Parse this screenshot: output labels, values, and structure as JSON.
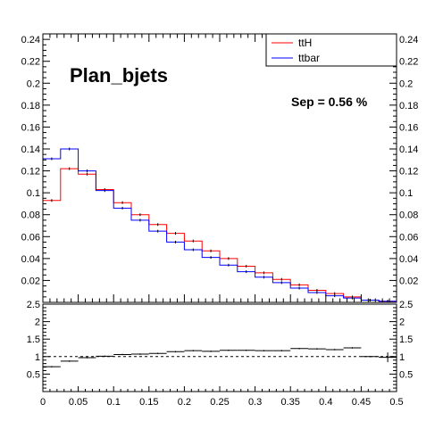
{
  "chart_data": [
    {
      "type": "histogram-step",
      "title": "Plan_bjets",
      "annotation": "Sep = 0.56 %",
      "legend": {
        "position": "top-right",
        "entries": [
          "ttH",
          "ttbar"
        ]
      },
      "bin_edges": [
        0,
        0.025,
        0.05,
        0.075,
        0.1,
        0.125,
        0.15,
        0.175,
        0.2,
        0.225,
        0.25,
        0.275,
        0.3,
        0.325,
        0.35,
        0.375,
        0.4,
        0.425,
        0.45,
        0.475,
        0.5
      ],
      "series": [
        {
          "name": "ttH",
          "color": "#ff0000",
          "values": [
            0.093,
            0.122,
            0.117,
            0.103,
            0.091,
            0.08,
            0.071,
            0.063,
            0.056,
            0.047,
            0.04,
            0.033,
            0.027,
            0.021,
            0.016,
            0.011,
            0.008,
            0.005,
            0.002,
            0.001
          ]
        },
        {
          "name": "ttbar",
          "color": "#0000ff",
          "values": [
            0.131,
            0.14,
            0.12,
            0.102,
            0.086,
            0.075,
            0.065,
            0.055,
            0.048,
            0.041,
            0.034,
            0.028,
            0.023,
            0.018,
            0.013,
            0.009,
            0.006,
            0.004,
            0.002,
            0.001
          ]
        }
      ],
      "xlim": [
        0,
        0.5
      ],
      "ylim": [
        0,
        0.245
      ],
      "y_ticks": [
        "0.02",
        "0.04",
        "0.06",
        "0.08",
        "0.1",
        "0.12",
        "0.14",
        "0.16",
        "0.18",
        "0.2",
        "0.22",
        "0.24"
      ]
    },
    {
      "type": "ratio",
      "x": [
        0.0125,
        0.0375,
        0.0625,
        0.0875,
        0.1125,
        0.1375,
        0.1625,
        0.1875,
        0.2125,
        0.2375,
        0.2625,
        0.2875,
        0.3125,
        0.3375,
        0.3625,
        0.3875,
        0.4125,
        0.4375,
        0.4625,
        0.4875
      ],
      "values": [
        0.71,
        0.87,
        0.97,
        1.01,
        1.06,
        1.07,
        1.09,
        1.14,
        1.17,
        1.15,
        1.18,
        1.18,
        1.17,
        1.17,
        1.23,
        1.22,
        1.2,
        1.25,
        1.0,
        0.98
      ],
      "reference_line": 1,
      "xlim": [
        0,
        0.5
      ],
      "ylim": [
        0,
        2.5
      ],
      "y_ticks": [
        "0.5",
        "1",
        "1.5",
        "2",
        "2.5"
      ],
      "x_ticks": [
        "0",
        "0.05",
        "0.1",
        "0.15",
        "0.2",
        "0.25",
        "0.3",
        "0.35",
        "0.4",
        "0.45",
        "0.5"
      ]
    }
  ]
}
